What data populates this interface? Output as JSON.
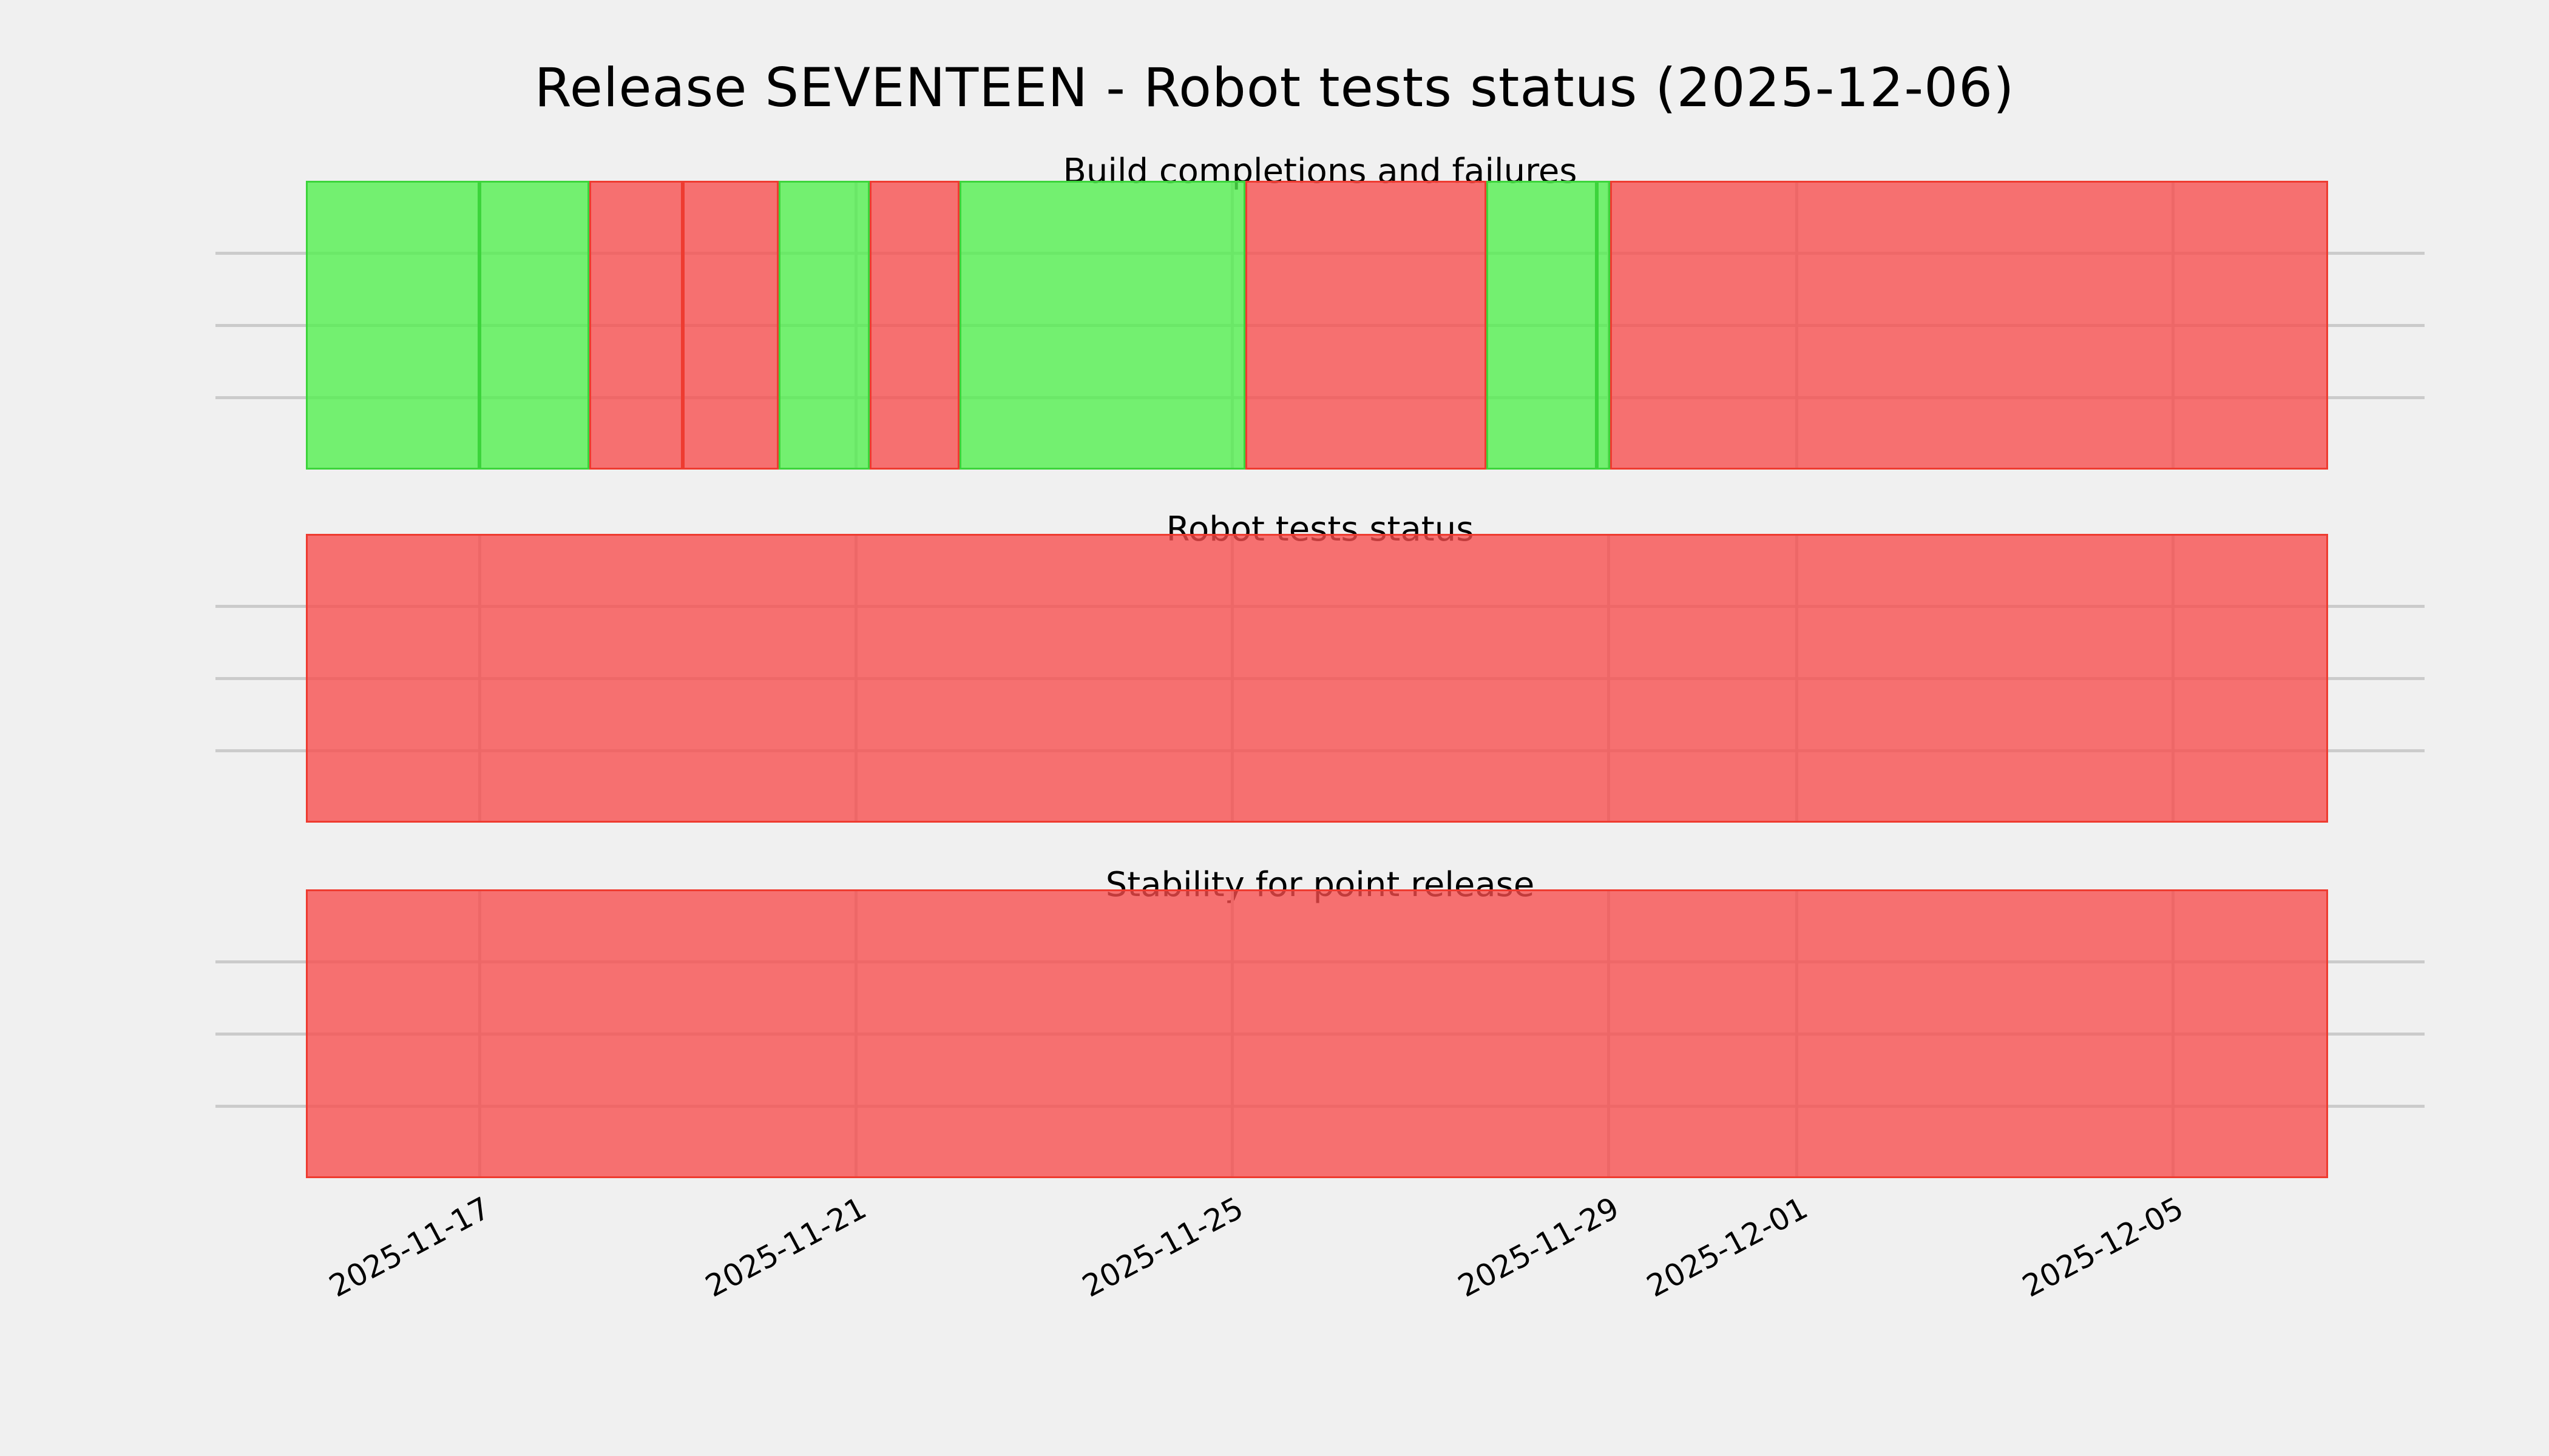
{
  "page": {
    "background_color": "#f0f0f0",
    "text_color": "#000000"
  },
  "header": {
    "title": "Release SEVENTEEN - Robot tests status (2025-12-06)"
  },
  "status_colors": {
    "success_fill": "rgba(80,240,75,0.78)",
    "failure_fill": "rgba(247,75,75,0.78)",
    "success_edge": "#3cd43b",
    "failure_edge": "#ee3b30",
    "gridline": "#cbcbcb"
  },
  "x_axis": {
    "ticks": [
      {
        "label": "2025-11-17",
        "axes_pct": 11.95,
        "strip_pct": 8.58
      },
      {
        "label": "2025-11-21",
        "axes_pct": 28.98,
        "strip_pct": 27.19
      },
      {
        "label": "2025-11-25",
        "axes_pct": 46.02,
        "strip_pct": 45.8
      },
      {
        "label": "2025-11-29",
        "axes_pct": 63.05,
        "strip_pct": 64.41
      },
      {
        "label": "2025-12-01",
        "axes_pct": 71.57,
        "strip_pct": 73.71
      },
      {
        "label": "2025-12-05",
        "axes_pct": 88.6,
        "strip_pct": 92.32
      }
    ],
    "label_rotation_deg": 28
  },
  "chart_data": [
    {
      "type": "timeline-status",
      "title": "Build completions and failures",
      "x_range": {
        "start": "2025-11-15 ~04:00",
        "end": "2025-12-06 ~16:00"
      },
      "grid": {
        "horizontal_lines": 3,
        "vertical_lines_at_ticks": true
      },
      "legend": "green = success, red = failure",
      "segments": [
        {
          "status": "success",
          "width_pct": 8.58,
          "approx_start": "2025-11-15 04:00",
          "approx_end": "2025-11-17 04:00"
        },
        {
          "status": "success",
          "width_pct": 5.43,
          "approx_start": "2025-11-17 04:00",
          "approx_end": "2025-11-18 04:00"
        },
        {
          "status": "failure",
          "width_pct": 4.62,
          "approx_start": "2025-11-18 04:00",
          "approx_end": "2025-11-19 04:00"
        },
        {
          "status": "failure",
          "width_pct": 4.74,
          "approx_start": "2025-11-19 04:00",
          "approx_end": "2025-11-20 04:00"
        },
        {
          "status": "success",
          "width_pct": 4.5,
          "approx_start": "2025-11-20 04:00",
          "approx_end": "2025-11-21 03:00"
        },
        {
          "status": "failure",
          "width_pct": 4.44,
          "approx_start": "2025-11-21 03:00",
          "approx_end": "2025-11-22 03:00"
        },
        {
          "status": "success",
          "width_pct": 14.16,
          "approx_start": "2025-11-22 03:00",
          "approx_end": "2025-11-25 04:00"
        },
        {
          "status": "failure",
          "width_pct": 11.91,
          "approx_start": "2025-11-25 04:00",
          "approx_end": "2025-11-27 17:00"
        },
        {
          "status": "success",
          "width_pct": 5.46,
          "approx_start": "2025-11-27 17:00",
          "approx_end": "2025-11-28 21:00"
        },
        {
          "status": "success",
          "width_pct": 0.66,
          "approx_start": "2025-11-28 21:00",
          "approx_end": "2025-11-29 01:00"
        },
        {
          "status": "failure",
          "width_pct": 35.5,
          "approx_start": "2025-11-29 01:00",
          "approx_end": "2025-12-06 16:00"
        }
      ]
    },
    {
      "type": "timeline-status",
      "title": "Robot tests status",
      "x_range": {
        "start": "2025-11-15 ~04:00",
        "end": "2025-12-06 ~16:00"
      },
      "grid": {
        "horizontal_lines": 3,
        "vertical_lines_at_ticks": true
      },
      "legend": "green = success, red = failure",
      "segments": [
        {
          "status": "failure",
          "width_pct": 100,
          "approx_start": "2025-11-15 04:00",
          "approx_end": "2025-12-06 16:00"
        }
      ]
    },
    {
      "type": "timeline-status",
      "title": "Stability for point release",
      "x_range": {
        "start": "2025-11-15 ~04:00",
        "end": "2025-12-06 ~16:00"
      },
      "grid": {
        "horizontal_lines": 3,
        "vertical_lines_at_ticks": true
      },
      "legend": "green = success, red = failure",
      "segments": [
        {
          "status": "failure",
          "width_pct": 100,
          "approx_start": "2025-11-15 04:00",
          "approx_end": "2025-12-06 16:00"
        }
      ]
    }
  ]
}
